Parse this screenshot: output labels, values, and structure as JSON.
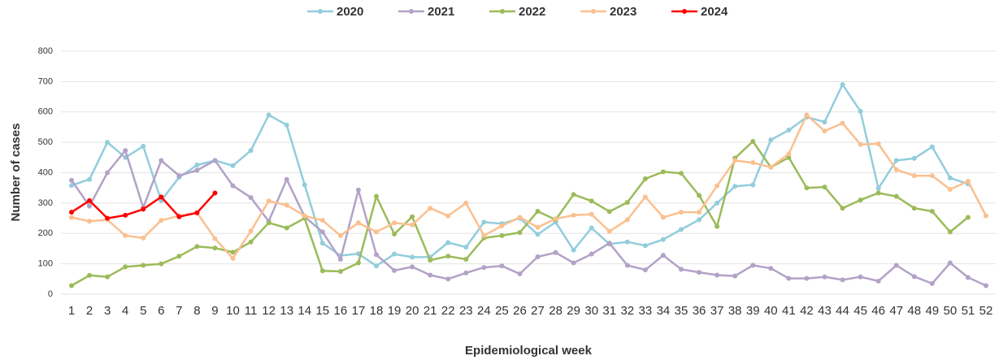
{
  "chart_data": {
    "type": "line",
    "x_label": "Epidemiological week",
    "y_label": "Number of cases",
    "categories": [
      1,
      2,
      3,
      4,
      5,
      6,
      7,
      8,
      9,
      10,
      11,
      12,
      13,
      14,
      15,
      16,
      17,
      18,
      19,
      20,
      21,
      22,
      23,
      24,
      25,
      26,
      27,
      28,
      29,
      30,
      31,
      32,
      33,
      34,
      35,
      36,
      37,
      38,
      39,
      40,
      41,
      42,
      43,
      44,
      45,
      46,
      47,
      48,
      49,
      50,
      51,
      52
    ],
    "ylim": [
      0,
      800
    ],
    "yticks": [
      0,
      100,
      200,
      300,
      400,
      500,
      600,
      700,
      800
    ],
    "grid": true,
    "legend": "top",
    "series": [
      {
        "name": "2020",
        "color": "#92cddc",
        "values": [
          358,
          378,
          500,
          450,
          487,
          308,
          385,
          425,
          440,
          423,
          473,
          590,
          557,
          360,
          168,
          127,
          133,
          93,
          132,
          122,
          122,
          170,
          155,
          237,
          232,
          250,
          197,
          237,
          145,
          218,
          165,
          172,
          160,
          180,
          213,
          245,
          300,
          355,
          360,
          508,
          540,
          583,
          567,
          690,
          602,
          348,
          440,
          447,
          485,
          383,
          363,
          null
        ]
      },
      {
        "name": "2021",
        "color": "#b3a2c7",
        "values": [
          375,
          290,
          400,
          473,
          285,
          440,
          390,
          408,
          440,
          357,
          318,
          240,
          378,
          255,
          205,
          115,
          343,
          130,
          78,
          90,
          63,
          50,
          70,
          88,
          93,
          67,
          123,
          137,
          103,
          132,
          168,
          95,
          80,
          128,
          82,
          72,
          63,
          60,
          95,
          85,
          52,
          52,
          57,
          47,
          57,
          43,
          95,
          58,
          35,
          103,
          55,
          28
        ]
      },
      {
        "name": "2022",
        "color": "#9bbb59",
        "values": [
          28,
          62,
          57,
          90,
          95,
          100,
          125,
          157,
          152,
          138,
          172,
          235,
          218,
          250,
          77,
          75,
          103,
          322,
          198,
          255,
          112,
          125,
          115,
          185,
          193,
          203,
          273,
          245,
          328,
          307,
          272,
          302,
          380,
          403,
          398,
          325,
          223,
          448,
          503,
          418,
          450,
          350,
          353,
          283,
          310,
          333,
          322,
          283,
          273,
          205,
          253,
          null
        ]
      },
      {
        "name": "2023",
        "color": "#fac090",
        "values": [
          253,
          240,
          245,
          193,
          185,
          243,
          258,
          268,
          183,
          118,
          208,
          307,
          293,
          258,
          243,
          193,
          235,
          205,
          235,
          228,
          283,
          258,
          300,
          193,
          225,
          253,
          220,
          248,
          260,
          263,
          207,
          245,
          320,
          253,
          270,
          270,
          357,
          440,
          433,
          418,
          462,
          590,
          537,
          563,
          493,
          495,
          410,
          390,
          390,
          345,
          372,
          258
        ]
      },
      {
        "name": "2024",
        "color": "#ff0000",
        "values": [
          270,
          308,
          250,
          260,
          280,
          320,
          255,
          268,
          333,
          null,
          null,
          null,
          null,
          null,
          null,
          null,
          null,
          null,
          null,
          null,
          null,
          null,
          null,
          null,
          null,
          null,
          null,
          null,
          null,
          null,
          null,
          null,
          null,
          null,
          null,
          null,
          null,
          null,
          null,
          null,
          null,
          null,
          null,
          null,
          null,
          null,
          null,
          null,
          null,
          null,
          null,
          null
        ]
      }
    ]
  }
}
